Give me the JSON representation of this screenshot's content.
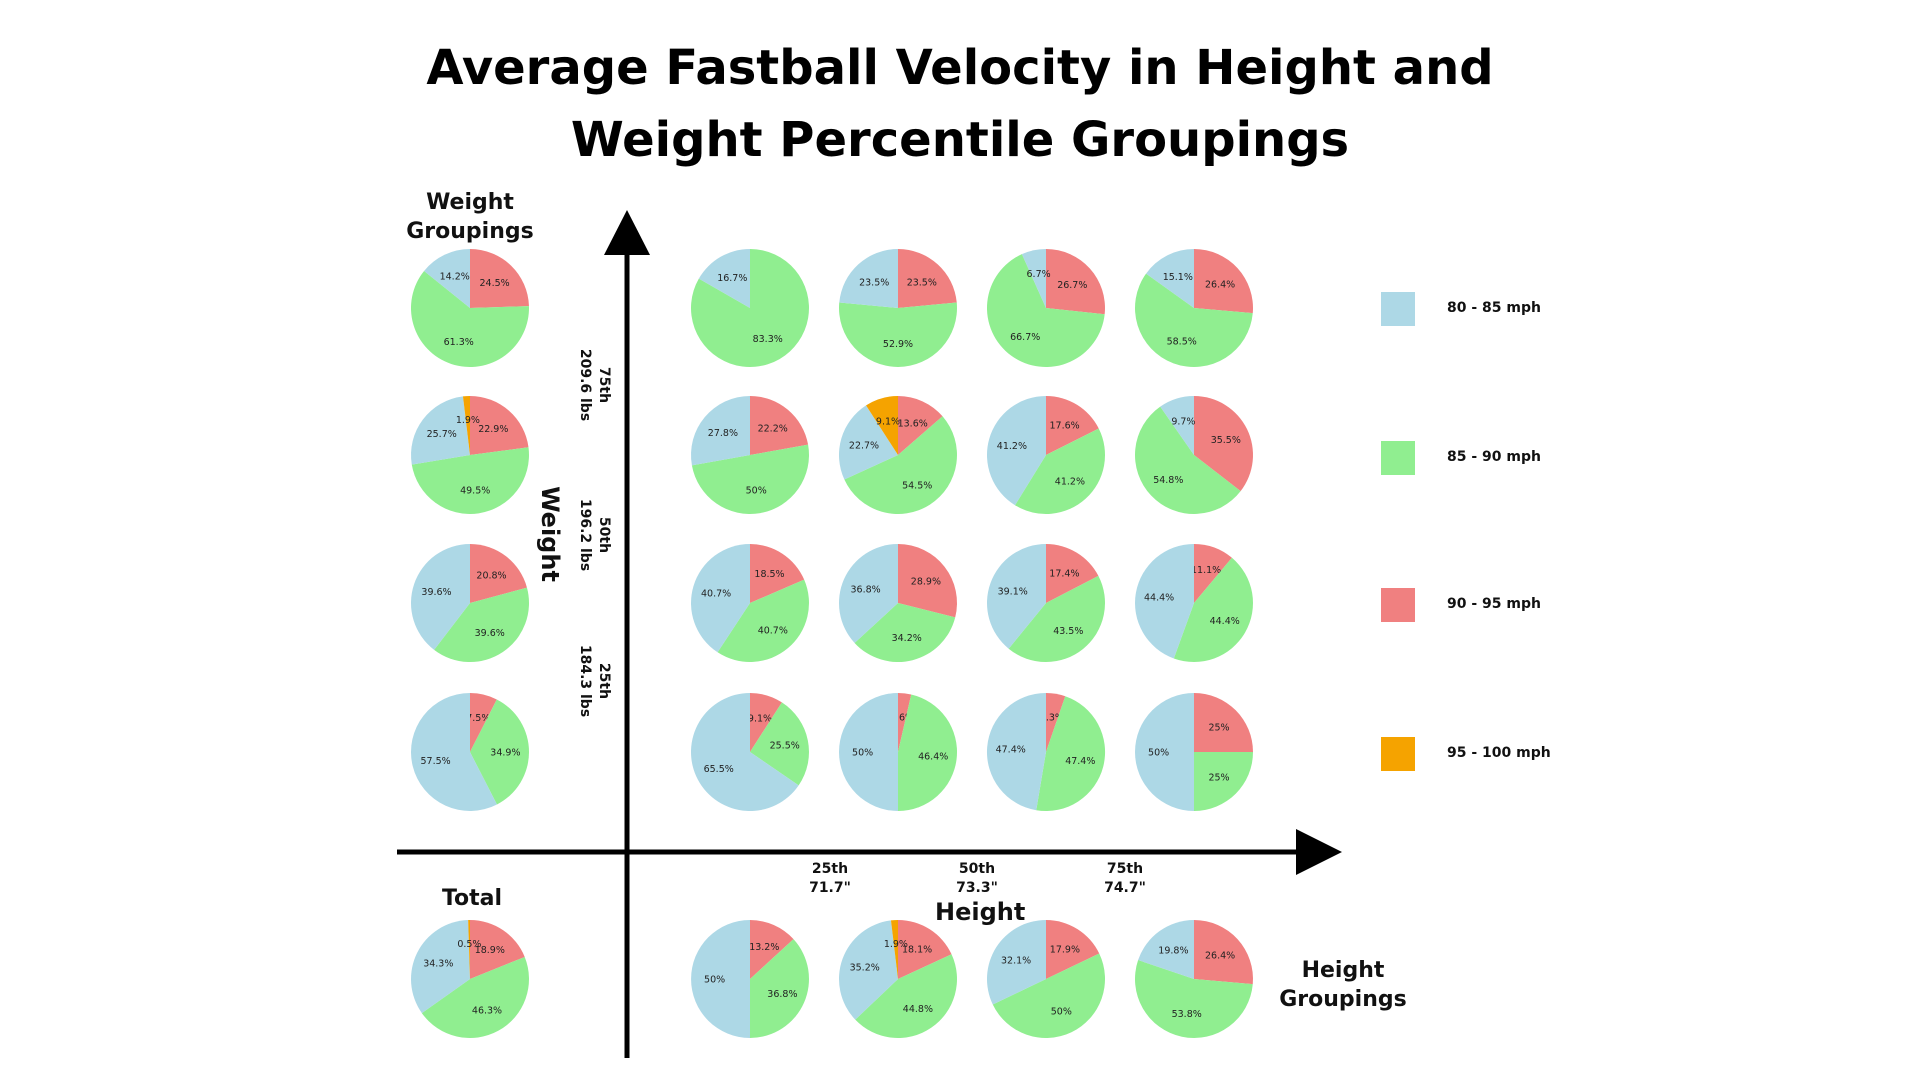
{
  "title_lines": [
    "Average Fastball Velocity in Height and",
    "Weight Percentile Groupings"
  ],
  "labels": {
    "weight_groupings": [
      "Weight",
      "Groupings"
    ],
    "height_groupings": [
      "Height",
      "Groupings"
    ],
    "total": "Total",
    "weight_axis": "Weight",
    "height_axis": "Height"
  },
  "height_ticks": [
    {
      "pct": "25th",
      "value": "71.7\""
    },
    {
      "pct": "50th",
      "value": "73.3\""
    },
    {
      "pct": "75th",
      "value": "74.7\""
    }
  ],
  "weight_ticks": [
    {
      "pct": "75th",
      "value": "209.6 lbs"
    },
    {
      "pct": "50th",
      "value": "196.2 lbs"
    },
    {
      "pct": "25th",
      "value": "184.3 lbs"
    }
  ],
  "legend": [
    {
      "label": "80 - 85 mph",
      "color": "#add8e6"
    },
    {
      "label": "85 - 90 mph",
      "color": "#90ee90"
    },
    {
      "label": "90 - 95 mph",
      "color": "#f08080"
    },
    {
      "label": "95 - 100 mph",
      "color": "#f5a300"
    }
  ],
  "chart_data": {
    "type": "pie",
    "category_order": [
      "90 - 95 mph",
      "85 - 90 mph",
      "80 - 85 mph",
      "95 - 100 mph"
    ],
    "grid": [
      [
        {
          "values": [
            null,
            83.3,
            16.7,
            null
          ],
          "labels": [
            "",
            "83.3%",
            "16.7%",
            ""
          ]
        },
        {
          "values": [
            23.5,
            52.9,
            23.5,
            null
          ],
          "labels": [
            "23.5%",
            "52.9%",
            "23.5%",
            ""
          ]
        },
        {
          "values": [
            26.7,
            66.7,
            6.7,
            null
          ],
          "labels": [
            "26.7%",
            "66.7%",
            "6.7%",
            ""
          ]
        },
        {
          "values": [
            26.4,
            58.5,
            15.1,
            null
          ],
          "labels": [
            "26.4%",
            "58.5%",
            "15.1%",
            ""
          ]
        }
      ],
      [
        {
          "values": [
            22.2,
            50,
            27.8,
            null
          ],
          "labels": [
            "22.2%",
            "50%",
            "27.8%",
            ""
          ]
        },
        {
          "values": [
            13.6,
            54.5,
            22.7,
            9.1
          ],
          "labels": [
            "13.6%",
            "54.5%",
            "22.7%",
            "9.1%"
          ]
        },
        {
          "values": [
            17.6,
            41.2,
            41.2,
            null
          ],
          "labels": [
            "17.6%",
            "41.2%",
            "41.2%",
            ""
          ]
        },
        {
          "values": [
            35.5,
            54.8,
            9.7,
            null
          ],
          "labels": [
            "35.5%",
            "54.8%",
            "9.7%",
            ""
          ]
        }
      ],
      [
        {
          "values": [
            18.5,
            40.7,
            40.7,
            null
          ],
          "labels": [
            "18.5%",
            "40.7%",
            "40.7%",
            ""
          ]
        },
        {
          "values": [
            28.9,
            34.2,
            36.8,
            null
          ],
          "labels": [
            "28.9%",
            "34.2%",
            "36.8%",
            ""
          ]
        },
        {
          "values": [
            17.4,
            43.5,
            39.1,
            null
          ],
          "labels": [
            "17.4%",
            "43.5%",
            "39.1%",
            ""
          ]
        },
        {
          "values": [
            11.1,
            44.4,
            44.4,
            null
          ],
          "labels": [
            "11.1%",
            "44.4%",
            "44.4%",
            ""
          ]
        }
      ],
      [
        {
          "values": [
            9.1,
            25.5,
            65.5,
            null
          ],
          "labels": [
            "9.1%",
            "25.5%",
            "65.5%",
            ""
          ]
        },
        {
          "values": [
            3.6,
            46.4,
            50,
            null
          ],
          "labels": [
            "3.6%",
            "46.4%",
            "50%",
            ""
          ]
        },
        {
          "values": [
            5.3,
            47.4,
            47.4,
            null
          ],
          "labels": [
            "5.3%",
            "47.4%",
            "47.4%",
            ""
          ]
        },
        {
          "values": [
            25,
            25,
            50,
            null
          ],
          "labels": [
            "25%",
            "25%",
            "50%",
            ""
          ]
        }
      ]
    ],
    "weight_groupings": [
      {
        "values": [
          24.5,
          61.3,
          14.2,
          null
        ],
        "labels": [
          "24.5%",
          "61.3%",
          "14.2%",
          ""
        ]
      },
      {
        "values": [
          22.9,
          49.5,
          25.7,
          1.9
        ],
        "labels": [
          "22.9%",
          "49.5%",
          "25.7%",
          "1.9%"
        ]
      },
      {
        "values": [
          20.8,
          39.6,
          39.6,
          null
        ],
        "labels": [
          "20.8%",
          "39.6%",
          "39.6%",
          ""
        ]
      },
      {
        "values": [
          7.5,
          34.9,
          57.5,
          null
        ],
        "labels": [
          "7.5%",
          "34.9%",
          "57.5%",
          ""
        ]
      }
    ],
    "height_groupings": [
      {
        "values": [
          13.2,
          36.8,
          50,
          null
        ],
        "labels": [
          "13.2%",
          "36.8%",
          "50%",
          ""
        ]
      },
      {
        "values": [
          18.1,
          44.8,
          35.2,
          1.9
        ],
        "labels": [
          "18.1%",
          "44.8%",
          "35.2%",
          "1.9%"
        ]
      },
      {
        "values": [
          17.9,
          50,
          32.1,
          null
        ],
        "labels": [
          "17.9%",
          "50%",
          "32.1%",
          ""
        ]
      },
      {
        "values": [
          26.4,
          53.8,
          19.8,
          null
        ],
        "labels": [
          "26.4%",
          "53.8%",
          "19.8%",
          ""
        ]
      }
    ],
    "total": {
      "values": [
        18.9,
        46.3,
        34.3,
        0.5
      ],
      "labels": [
        "18.9%",
        "46.3%",
        "34.3%",
        "0.5%"
      ]
    }
  }
}
